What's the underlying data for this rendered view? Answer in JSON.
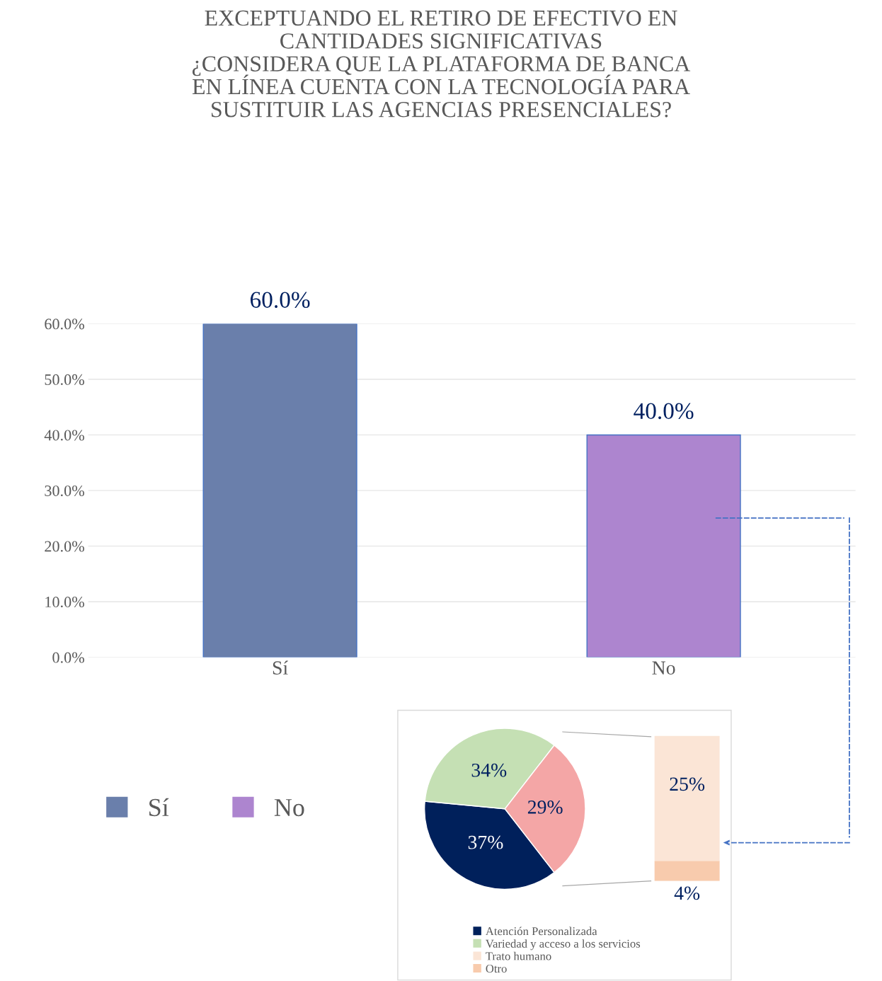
{
  "chart_data": [
    {
      "type": "bar",
      "title": "EXCEPTUANDO EL RETIRO DE EFECTIVO EN\nCANTIDADES SIGNIFICATIVAS\n¿CONSIDERA QUE LA PLATAFORMA DE BANCA\nEN LÍNEA CUENTA CON LA TECNOLOGÍA PARA\nSUSTITUIR LAS AGENCIAS PRESENCIALES?",
      "categories": [
        "Sí",
        "No"
      ],
      "series": [
        {
          "name": "Sí",
          "color": "#6a7fab",
          "values": [
            60,
            null
          ],
          "value_labels": [
            "60.0%",
            null
          ]
        },
        {
          "name": "No",
          "color": "#ad85cf",
          "values": [
            null,
            40
          ],
          "value_labels": [
            null,
            "40.0%"
          ]
        }
      ],
      "ylim": [
        0,
        60
      ],
      "yticks": [
        {
          "value": 0,
          "label": "0.0%"
        },
        {
          "value": 10,
          "label": "10.0%"
        },
        {
          "value": 20,
          "label": "20.0%"
        },
        {
          "value": 30,
          "label": "30.0%"
        },
        {
          "value": 40,
          "label": "40.0%"
        },
        {
          "value": 50,
          "label": "50.0%"
        },
        {
          "value": 60,
          "label": "60.0%"
        }
      ],
      "grid": "y",
      "legend": "bottom left"
    },
    {
      "type": "pie",
      "categories": [
        "Atención Personalizada",
        "Variedad y acceso a los servicios",
        null
      ],
      "values": [
        37,
        34,
        29
      ],
      "colors": [
        "#00205b",
        "#c5e0b4",
        "#f4a6a6"
      ],
      "value_labels": [
        "37%",
        "34%",
        "29%"
      ],
      "legend": "bottom"
    },
    {
      "type": "bar",
      "stacked": true,
      "categories": [
        null
      ],
      "series": [
        {
          "name": "Otro",
          "color": "#f8cbad",
          "values": [
            4
          ],
          "value_labels": [
            "4%"
          ]
        },
        {
          "name": "Trato humano",
          "color": "#fbe5d6",
          "values": [
            25
          ],
          "value_labels": [
            "25%"
          ]
        }
      ],
      "tick_labels": false,
      "legend": "bottom"
    }
  ]
}
